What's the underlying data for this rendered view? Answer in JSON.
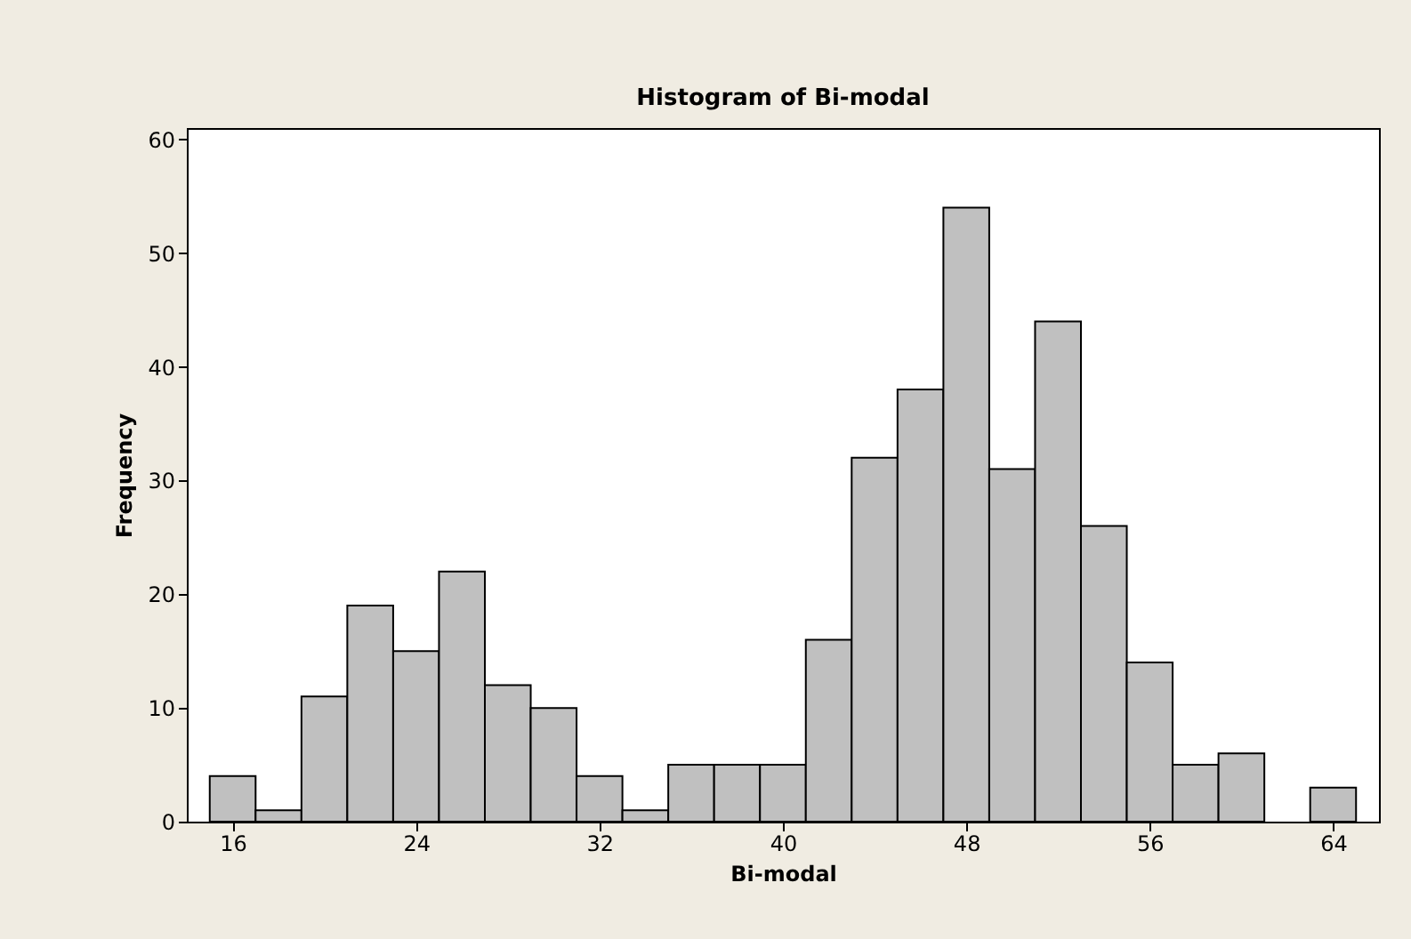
{
  "chart_data": {
    "type": "histogram",
    "title": "Histogram of Bi-modal",
    "xlabel": "Bi-modal",
    "ylabel": "Frequency",
    "bins": [
      15,
      17,
      19,
      21,
      23,
      25,
      27,
      29,
      31,
      33,
      35,
      37,
      39,
      41,
      43,
      45,
      47,
      49,
      51,
      53,
      55,
      57,
      59,
      61,
      63,
      65
    ],
    "values": [
      4,
      1,
      11,
      19,
      15,
      22,
      12,
      10,
      4,
      1,
      5,
      5,
      5,
      16,
      32,
      38,
      54,
      31,
      44,
      26,
      14,
      5,
      6,
      0,
      3
    ],
    "color": "#c0c0c0",
    "xlim": [
      14,
      66
    ],
    "xticks": [
      16,
      24,
      32,
      40,
      48,
      56,
      64
    ],
    "ylim": [
      0,
      61
    ],
    "yticks": [
      0,
      10,
      20,
      30,
      40,
      50,
      60
    ],
    "grid": false
  }
}
